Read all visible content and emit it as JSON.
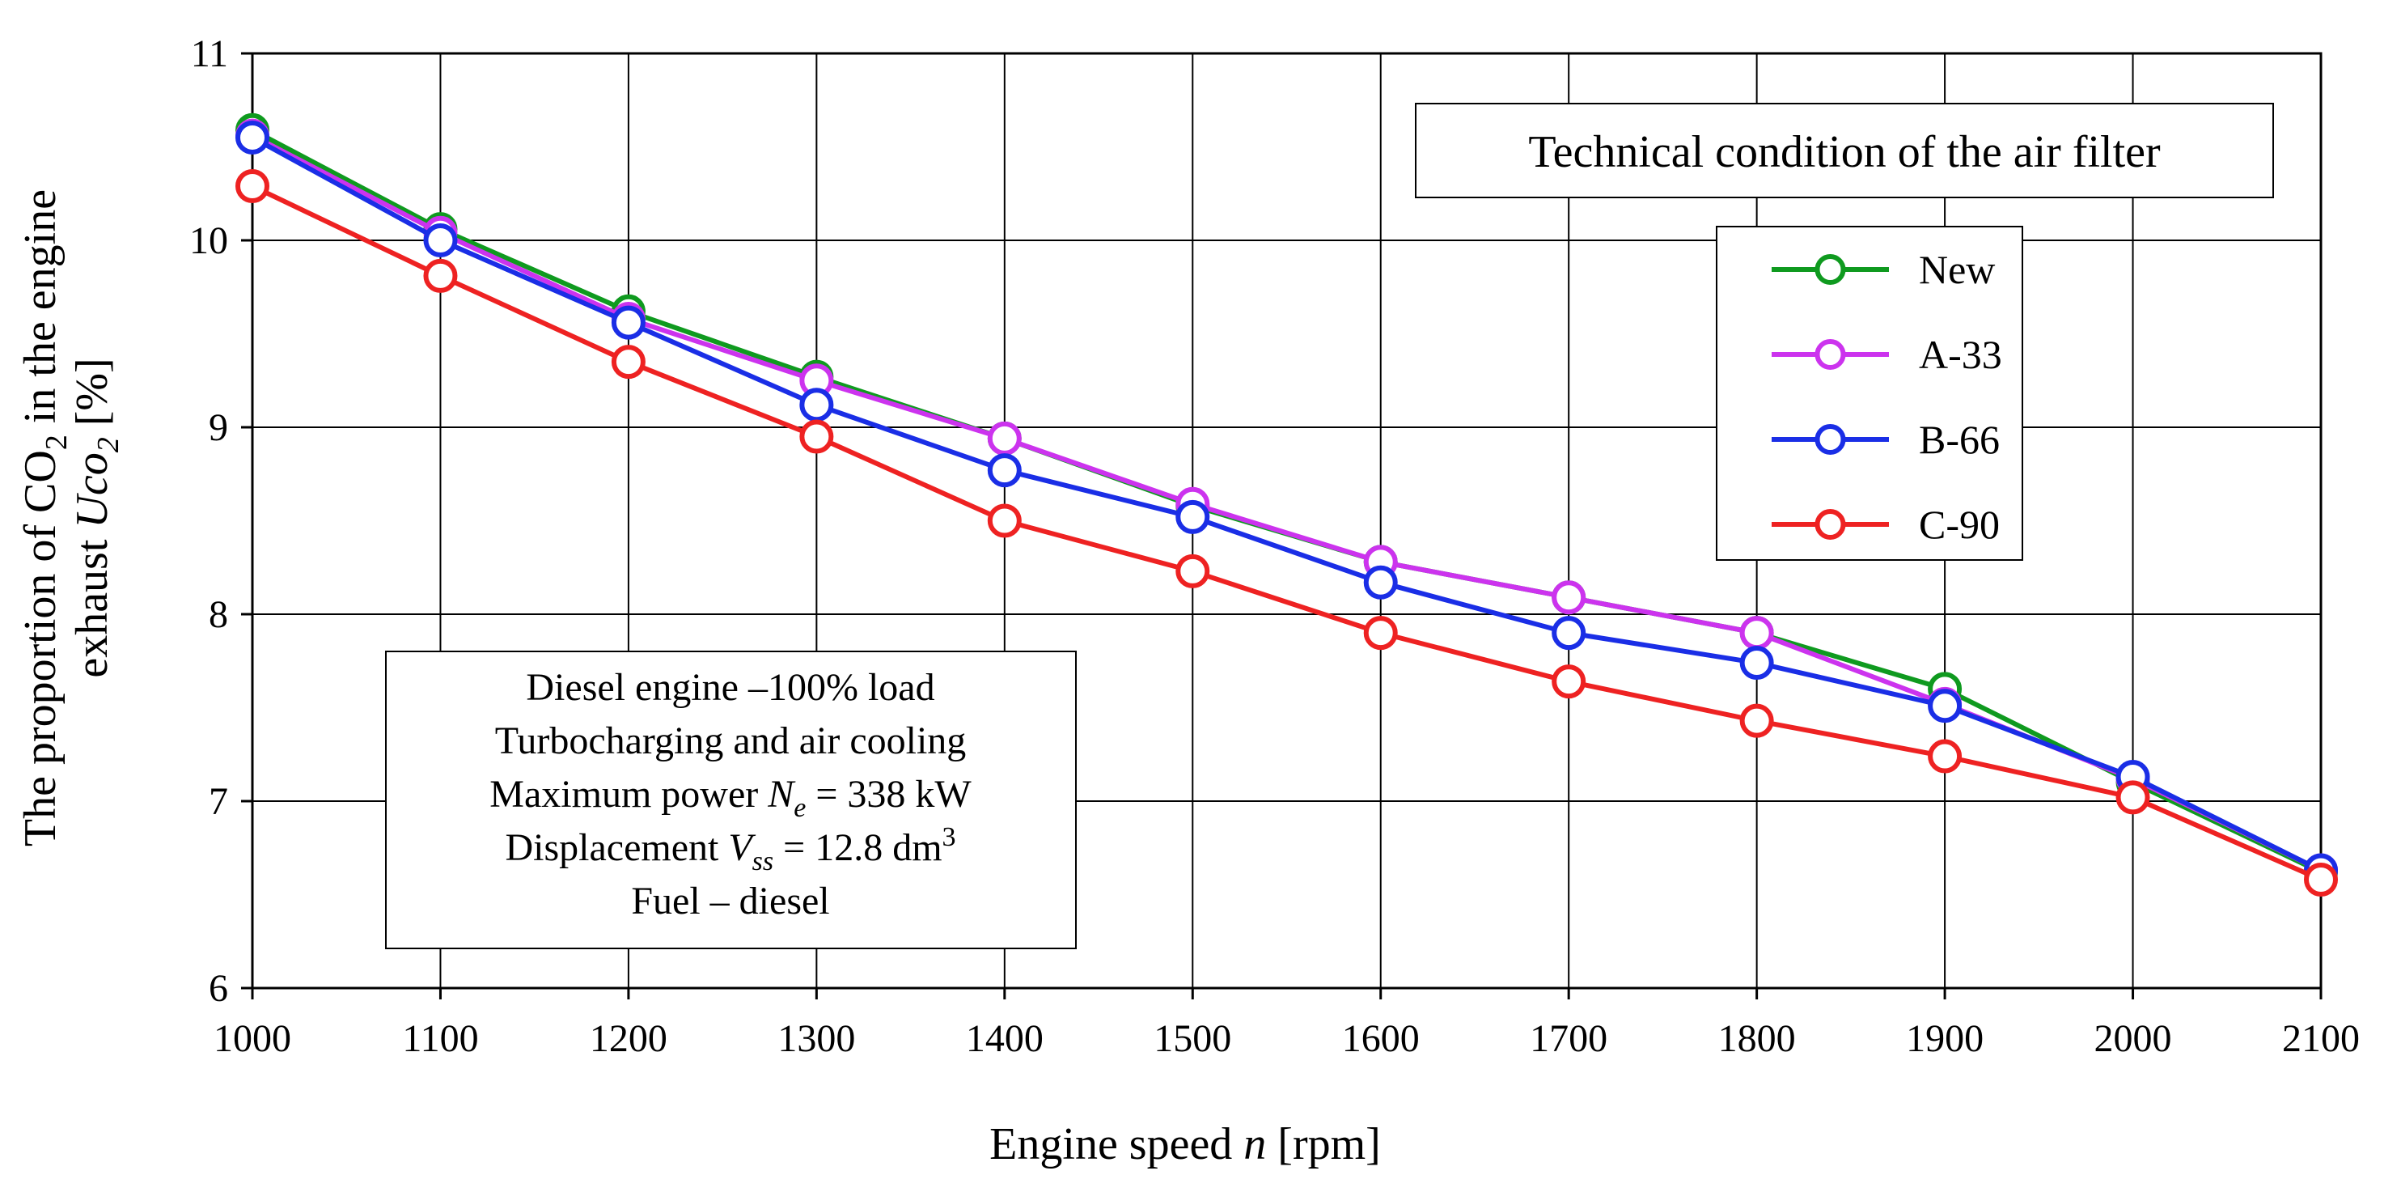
{
  "chart_data": {
    "type": "line",
    "title": "",
    "xlabel": {
      "prefix": "Engine speed ",
      "var": "n",
      "suffix": " [rpm]"
    },
    "ylabel": {
      "line1": {
        "prefix": "The proportion of  CO",
        "sub": "2",
        "suffix": " in the engine"
      },
      "line2": {
        "prefix": "exhaust ",
        "var": "Uco",
        "var_sub": "2",
        "suffix": " [%]"
      }
    },
    "xlim": [
      1000,
      2100
    ],
    "ylim": [
      6,
      11
    ],
    "x": [
      1000,
      1100,
      1200,
      1300,
      1400,
      1500,
      1600,
      1700,
      1800,
      1900,
      2000,
      2100
    ],
    "x_ticks": [
      "1000",
      "1100",
      "1200",
      "1300",
      "1400",
      "1500",
      "1600",
      "1700",
      "1800",
      "1900",
      "2000",
      "2100"
    ],
    "y_ticks": [
      "6",
      "7",
      "8",
      "9",
      "10",
      "11"
    ],
    "grid": true,
    "legend_title": "Technical condition of the air filter",
    "legend_position": "top-right",
    "series": [
      {
        "name": "New",
        "color": "#0f9a1f",
        "values": [
          10.59,
          10.06,
          9.62,
          9.27,
          8.94,
          8.58,
          8.28,
          8.09,
          7.9,
          7.6,
          7.1,
          6.62
        ]
      },
      {
        "name": "A-33",
        "color": "#cc33ee",
        "values": [
          10.56,
          10.04,
          9.58,
          9.25,
          8.94,
          8.59,
          8.28,
          8.09,
          7.9,
          7.52,
          7.12,
          6.63
        ]
      },
      {
        "name": "B-66",
        "color": "#1a2ee6",
        "values": [
          10.55,
          10.0,
          9.56,
          9.12,
          8.77,
          8.52,
          8.17,
          7.9,
          7.74,
          7.51,
          7.13,
          6.63
        ]
      },
      {
        "name": "C-90",
        "color": "#ee2222",
        "values": [
          10.29,
          9.81,
          9.35,
          8.95,
          8.5,
          8.23,
          7.9,
          7.64,
          7.43,
          7.24,
          7.02,
          6.58
        ]
      }
    ],
    "annotation": {
      "line1": "Diesel engine –100% load",
      "line2": "Turbocharging and air cooling",
      "line3": {
        "prefix": "Maximum power ",
        "var": "N",
        "sub": "e",
        "suffix": " = 338 kW"
      },
      "line4": {
        "prefix": "Displacement ",
        "var": "V",
        "sub": "ss",
        "suffix": " = 12.8 dm",
        "sup": "3"
      },
      "line5": "Fuel – diesel"
    }
  }
}
